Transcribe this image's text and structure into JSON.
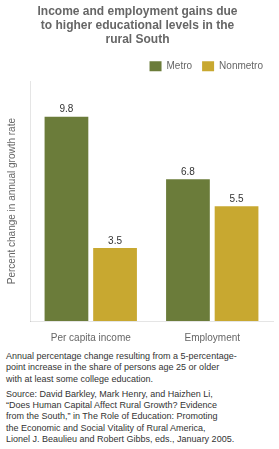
{
  "chart_data": {
    "type": "bar",
    "title": [
      "Income and employment gains due",
      "to higher educational levels in the",
      "rural South"
    ],
    "ylabel": "Percent change in annual growth rate",
    "categories": [
      "Per capita income",
      "Employment"
    ],
    "series": [
      {
        "name": "Metro",
        "color": "#6b7c3a",
        "values": [
          9.8,
          6.8
        ]
      },
      {
        "name": "Nonmetro",
        "color": "#c8a830",
        "values": [
          3.5,
          5.5
        ]
      }
    ],
    "ylim": [
      0,
      11.5
    ],
    "grid": false,
    "legend": "upper right",
    "data_labels": true,
    "tick_labels": "x",
    "annotations": [
      "Annual percentage change resulting from a 5-percentage-",
      "point increase in the share of persons age 25 or older",
      "with at least some college education.",
      "Source:  David Barkley, Mark Henry, and Haizhen Li,",
      "“Does Human Capital Affect Rural Growth? Evidence",
      "from the South,” in The Role of Education: Promoting",
      "the Economic and Social Vitality of Rural America,",
      "Lionel J. Beaulieu and Robert Gibbs, eds., January 2005."
    ]
  }
}
